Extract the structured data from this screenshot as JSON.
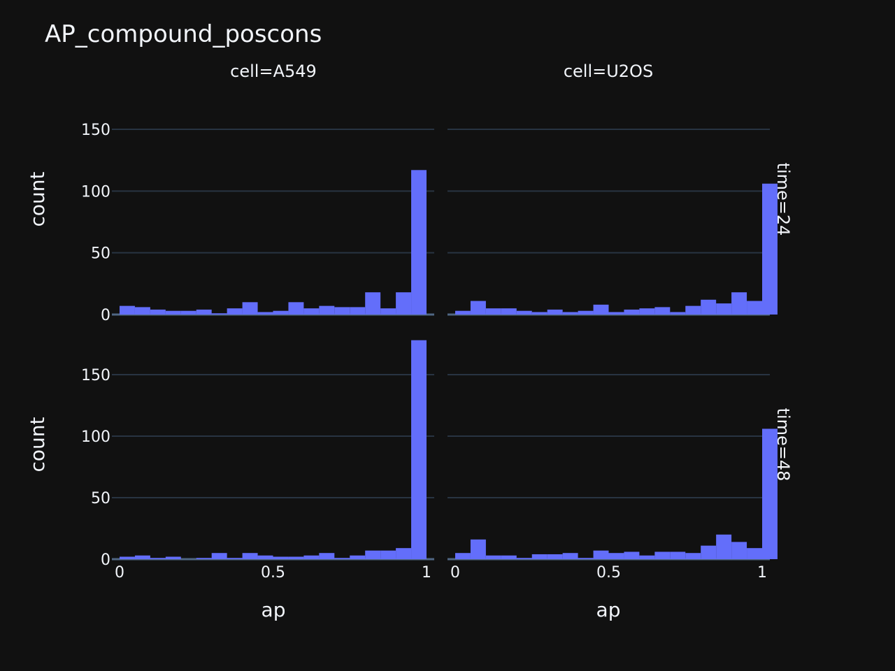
{
  "chart_data": {
    "type": "bar",
    "title": "AP_compound_poscons",
    "xlabel": "ap",
    "ylabel": "count",
    "ylim": [
      0,
      180
    ],
    "yticks": [
      0,
      50,
      100,
      150
    ],
    "xticks": [
      0,
      0.5,
      1
    ],
    "xticklabels": [
      "0",
      "0.5",
      "1"
    ],
    "bin_width": 0.05,
    "col_labels": [
      "cell=A549",
      "cell=U2OS"
    ],
    "row_labels": [
      "time=24",
      "time=48"
    ],
    "color": "#636efa",
    "panels": [
      {
        "cell": "A549",
        "time": "24",
        "bins": [
          [
            0.025,
            7
          ],
          [
            0.075,
            6
          ],
          [
            0.125,
            4
          ],
          [
            0.175,
            3
          ],
          [
            0.225,
            3
          ],
          [
            0.275,
            4
          ],
          [
            0.325,
            1
          ],
          [
            0.375,
            5
          ],
          [
            0.425,
            10
          ],
          [
            0.475,
            2
          ],
          [
            0.525,
            3
          ],
          [
            0.575,
            10
          ],
          [
            0.625,
            5
          ],
          [
            0.675,
            7
          ],
          [
            0.725,
            6
          ],
          [
            0.775,
            6
          ],
          [
            0.825,
            18
          ],
          [
            0.875,
            5
          ],
          [
            0.925,
            18
          ],
          [
            0.975,
            117
          ]
        ]
      },
      {
        "cell": "U2OS",
        "time": "24",
        "bins": [
          [
            0.025,
            3
          ],
          [
            0.075,
            11
          ],
          [
            0.125,
            5
          ],
          [
            0.175,
            5
          ],
          [
            0.225,
            3
          ],
          [
            0.275,
            2
          ],
          [
            0.325,
            4
          ],
          [
            0.375,
            2
          ],
          [
            0.425,
            3
          ],
          [
            0.475,
            8
          ],
          [
            0.525,
            2
          ],
          [
            0.575,
            4
          ],
          [
            0.625,
            5
          ],
          [
            0.675,
            6
          ],
          [
            0.725,
            2
          ],
          [
            0.775,
            7
          ],
          [
            0.825,
            12
          ],
          [
            0.875,
            9
          ],
          [
            0.925,
            18
          ],
          [
            0.975,
            11
          ],
          [
            1.025,
            106
          ]
        ]
      },
      {
        "cell": "A549",
        "time": "48",
        "bins": [
          [
            0.025,
            2
          ],
          [
            0.075,
            3
          ],
          [
            0.125,
            1
          ],
          [
            0.175,
            2
          ],
          [
            0.225,
            0
          ],
          [
            0.275,
            1
          ],
          [
            0.325,
            5
          ],
          [
            0.375,
            1
          ],
          [
            0.425,
            5
          ],
          [
            0.475,
            3
          ],
          [
            0.525,
            2
          ],
          [
            0.575,
            2
          ],
          [
            0.625,
            3
          ],
          [
            0.675,
            5
          ],
          [
            0.725,
            1
          ],
          [
            0.775,
            3
          ],
          [
            0.825,
            7
          ],
          [
            0.875,
            7
          ],
          [
            0.925,
            9
          ],
          [
            0.975,
            178
          ]
        ]
      },
      {
        "cell": "U2OS",
        "time": "48",
        "bins": [
          [
            0.025,
            5
          ],
          [
            0.075,
            16
          ],
          [
            0.125,
            3
          ],
          [
            0.175,
            3
          ],
          [
            0.225,
            1
          ],
          [
            0.275,
            4
          ],
          [
            0.325,
            4
          ],
          [
            0.375,
            5
          ],
          [
            0.425,
            1
          ],
          [
            0.475,
            7
          ],
          [
            0.525,
            5
          ],
          [
            0.575,
            6
          ],
          [
            0.625,
            3
          ],
          [
            0.675,
            6
          ],
          [
            0.725,
            6
          ],
          [
            0.775,
            5
          ],
          [
            0.825,
            11
          ],
          [
            0.875,
            20
          ],
          [
            0.925,
            14
          ],
          [
            0.975,
            9
          ],
          [
            1.025,
            106
          ]
        ]
      }
    ]
  }
}
